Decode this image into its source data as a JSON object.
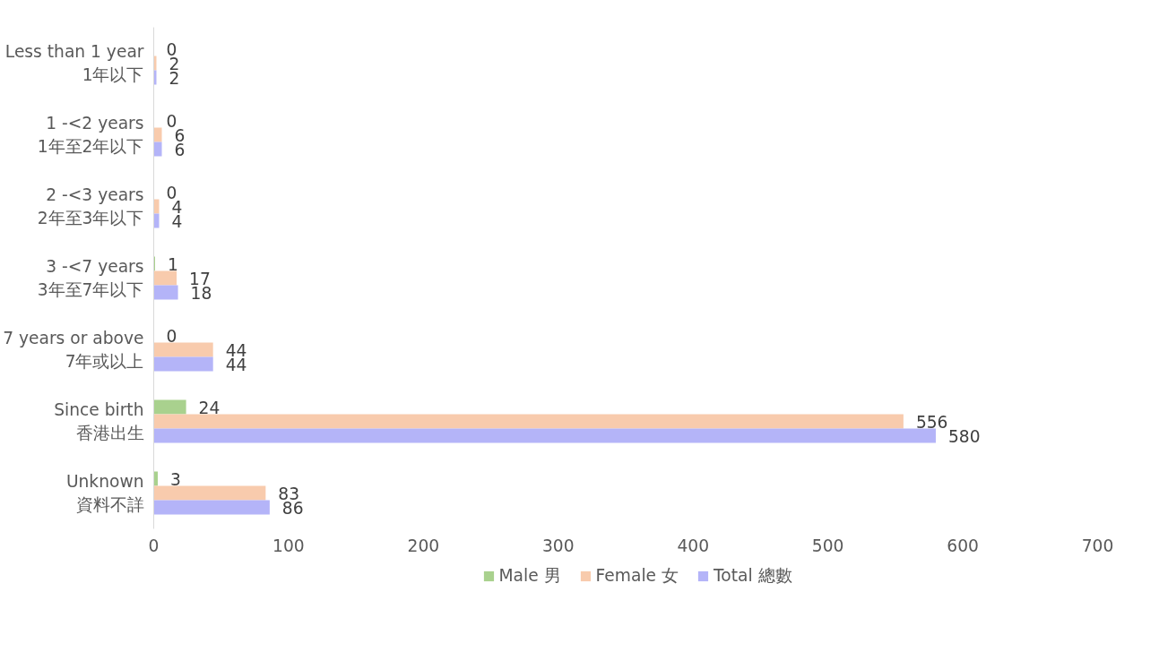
{
  "chart_data": {
    "type": "bar",
    "orientation": "horizontal",
    "categories": [
      "Less than 1 year\n1年以下",
      "1 -<2 years\n1年至2年以下",
      "2 -<3 years\n2年至3年以下",
      "3 -<7 years\n3年至7年以下",
      "7 years or above\n7年或以上",
      "Since birth\n香港出生",
      "Unknown\n資料不詳"
    ],
    "series": [
      {
        "name": "Male 男",
        "color": "#a9d18e",
        "values": [
          0,
          0,
          0,
          1,
          0,
          24,
          3
        ]
      },
      {
        "name": "Female 女",
        "color": "#f8cbad",
        "values": [
          2,
          6,
          4,
          17,
          44,
          556,
          83
        ]
      },
      {
        "name": "Total 總數",
        "color": "#b4b4f8",
        "values": [
          2,
          6,
          4,
          18,
          44,
          580,
          86
        ]
      }
    ],
    "xlim": [
      0,
      700
    ],
    "xticks": [
      0,
      100,
      200,
      300,
      400,
      500,
      600,
      700
    ],
    "data_labels": true,
    "legend": "bottom",
    "grid": false
  }
}
